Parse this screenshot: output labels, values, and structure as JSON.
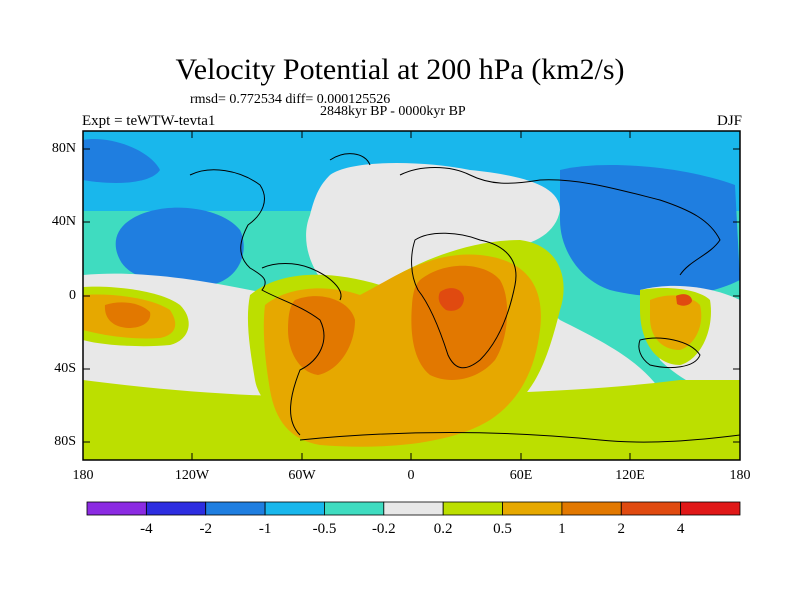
{
  "figure": {
    "title": "Velocity Potential at 200 hPa (km2/s)",
    "stats": "rmsd= 0.772534 diff= 0.000125526",
    "period": "2848kyr BP - 0000kyr BP",
    "experiment": "Expt = teWTW-tevta1",
    "season": "DJF"
  },
  "axes": {
    "lat_labels": [
      "80N",
      "40N",
      "0",
      "40S",
      "80S"
    ],
    "lon_labels": [
      "180",
      "120W",
      "60W",
      "0",
      "60E",
      "120E",
      "180"
    ]
  },
  "colorbar": {
    "labels": [
      "-4",
      "-2",
      "-1",
      "-0.5",
      "-0.2",
      "0.2",
      "0.5",
      "1",
      "2",
      "4"
    ],
    "colors": [
      "#8b2be2",
      "#2d2de0",
      "#1f7ee0",
      "#19b7ec",
      "#3fdcc0",
      "#e8e8e8",
      "#bcdf00",
      "#e6a800",
      "#e27800",
      "#e04a10",
      "#e01818"
    ]
  },
  "colors": {
    "neg_strong": "#1f7ee0",
    "neg_mid": "#19b7ec",
    "neg_weak": "#3fdcc0",
    "neutral": "#e8e8e8",
    "pos_weak": "#bcdf00",
    "pos_mid": "#e6a800",
    "pos_strong": "#e27800",
    "pos_max": "#e04a10"
  }
}
